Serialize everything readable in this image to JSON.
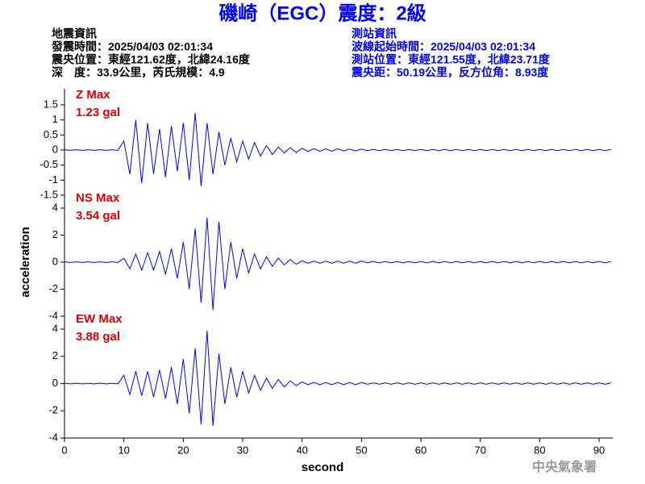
{
  "header": {
    "title": "磯崎（EGC）震度：2級",
    "left": [
      "地震資訊",
      "發震時間：2025/04/03 02:01:34",
      "震央位置：東經121.62度，北緯24.16度",
      "深　度：33.9公里，芮氏規模：4.9"
    ],
    "right": [
      "測站資訊",
      "波線起始時間：2025/04/03 02:01:34",
      "測站位置：東經121.55度，北緯23.71度",
      "震央距：50.19公里，反方位角：8.93度"
    ]
  },
  "footer": "中央氣象署",
  "chart_data": [
    {
      "type": "line",
      "annotation": [
        "Z Max",
        "1.23 gal"
      ],
      "xlim": [
        0,
        92.3
      ],
      "ylim": [
        -1.5,
        1.5
      ],
      "yticks": [
        -1.5,
        -1,
        -0.5,
        0,
        0.5,
        1,
        1.5
      ],
      "x": [
        0,
        1,
        2,
        3,
        4,
        5,
        6,
        7,
        8,
        9,
        10,
        11,
        12,
        13,
        14,
        15,
        16,
        17,
        18,
        19,
        20,
        21,
        22,
        23,
        24,
        25,
        26,
        27,
        28,
        29,
        30,
        31,
        32,
        33,
        34,
        35,
        36,
        37,
        38,
        39,
        40,
        41,
        42,
        43,
        44,
        45,
        46,
        47,
        48,
        49,
        50,
        51,
        52,
        53,
        54,
        55,
        56,
        57,
        58,
        59,
        60,
        61,
        62,
        63,
        64,
        65,
        66,
        67,
        68,
        69,
        70,
        71,
        72,
        73,
        74,
        75,
        76,
        77,
        78,
        79,
        80,
        81,
        82,
        83,
        84,
        85,
        86,
        87,
        88,
        89,
        90,
        91,
        92
      ],
      "series": [
        {
          "color": "#0000ff",
          "values": [
            0.01,
            -0.01,
            0.01,
            -0.01,
            0.01,
            -0.01,
            0.01,
            -0.01,
            0.01,
            -0.01,
            0.3,
            -0.8,
            1,
            -1.1,
            0.9,
            -0.8,
            0.7,
            -0.9,
            0.8,
            -0.7,
            0.9,
            -1,
            1.23,
            -1.2,
            0.9,
            -0.8,
            0.6,
            -0.5,
            0.4,
            -0.4,
            0.3,
            -0.3,
            0.25,
            -0.2,
            0.15,
            -0.15,
            0.1,
            -0.1,
            0.08,
            -0.08,
            0.06,
            -0.05,
            0.05,
            -0.04,
            0.04,
            -0.04,
            0.04,
            -0.03,
            0.03,
            -0.03,
            0.03,
            -0.02,
            0.02,
            -0.02,
            0.02,
            -0.02,
            0.02,
            -0.02,
            0.02,
            -0.02,
            0.02,
            -0.02,
            0.02,
            -0.02,
            0.02,
            -0.02,
            0.02,
            -0.02,
            0.02,
            -0.02,
            0.02,
            -0.02,
            0.02,
            -0.02,
            0.02,
            -0.02,
            0.02,
            -0.02,
            0.02,
            -0.02,
            0.02,
            -0.02,
            0.02,
            -0.02,
            0.02,
            -0.02,
            0.02,
            -0.02,
            0.02,
            -0.02,
            0.02,
            -0.02,
            0.02
          ]
        }
      ]
    },
    {
      "type": "line",
      "annotation": [
        "NS Max",
        "3.54 gal"
      ],
      "ylabel": "acceleration",
      "xlim": [
        0,
        92.3
      ],
      "ylim": [
        -4,
        4
      ],
      "yticks": [
        -4,
        -2,
        0,
        2,
        4
      ],
      "x": [
        0,
        1,
        2,
        3,
        4,
        5,
        6,
        7,
        8,
        9,
        10,
        11,
        12,
        13,
        14,
        15,
        16,
        17,
        18,
        19,
        20,
        21,
        22,
        23,
        24,
        25,
        26,
        27,
        28,
        29,
        30,
        31,
        32,
        33,
        34,
        35,
        36,
        37,
        38,
        39,
        40,
        41,
        42,
        43,
        44,
        45,
        46,
        47,
        48,
        49,
        50,
        51,
        52,
        53,
        54,
        55,
        56,
        57,
        58,
        59,
        60,
        61,
        62,
        63,
        64,
        65,
        66,
        67,
        68,
        69,
        70,
        71,
        72,
        73,
        74,
        75,
        76,
        77,
        78,
        79,
        80,
        81,
        82,
        83,
        84,
        85,
        86,
        87,
        88,
        89,
        90,
        91,
        92
      ],
      "series": [
        {
          "color": "#0000ff",
          "values": [
            0.02,
            -0.02,
            0.02,
            -0.02,
            0.02,
            -0.02,
            0.02,
            -0.02,
            0.02,
            -0.02,
            0.3,
            -0.5,
            0.6,
            -0.6,
            0.7,
            -0.6,
            0.8,
            -0.9,
            1,
            -1.2,
            1.5,
            -2,
            2.5,
            -3,
            3.3,
            -3.54,
            3,
            -2,
            1.5,
            -1.2,
            1,
            -0.8,
            0.6,
            -0.5,
            0.4,
            -0.3,
            0.3,
            -0.2,
            0.2,
            -0.15,
            0.1,
            -0.08,
            0.08,
            -0.08,
            0.08,
            -0.08,
            0.08,
            -0.08,
            0.08,
            -0.08,
            0.08,
            -0.05,
            0.05,
            -0.05,
            0.05,
            -0.05,
            0.05,
            -0.05,
            0.05,
            -0.05,
            0.05,
            -0.05,
            0.05,
            -0.05,
            0.05,
            -0.05,
            0.05,
            -0.05,
            0.05,
            -0.05,
            0.05,
            -0.05,
            0.05,
            -0.05,
            0.05,
            -0.05,
            0.05,
            -0.05,
            0.05,
            -0.05,
            0.05,
            -0.05,
            0.05,
            -0.05,
            0.05,
            -0.05,
            0.05,
            -0.05,
            0.05,
            -0.05,
            0.05,
            -0.05,
            0.05
          ]
        }
      ]
    },
    {
      "type": "line",
      "annotation": [
        "EW Max",
        "3.88 gal"
      ],
      "xlabel": "second",
      "xlim": [
        0,
        92.3
      ],
      "xticks": [
        0,
        10,
        20,
        30,
        40,
        50,
        60,
        70,
        80,
        90
      ],
      "ylim": [
        -4,
        4
      ],
      "yticks": [
        -4,
        -2,
        0,
        2,
        4
      ],
      "x": [
        0,
        1,
        2,
        3,
        4,
        5,
        6,
        7,
        8,
        9,
        10,
        11,
        12,
        13,
        14,
        15,
        16,
        17,
        18,
        19,
        20,
        21,
        22,
        23,
        24,
        25,
        26,
        27,
        28,
        29,
        30,
        31,
        32,
        33,
        34,
        35,
        36,
        37,
        38,
        39,
        40,
        41,
        42,
        43,
        44,
        45,
        46,
        47,
        48,
        49,
        50,
        51,
        52,
        53,
        54,
        55,
        56,
        57,
        58,
        59,
        60,
        61,
        62,
        63,
        64,
        65,
        66,
        67,
        68,
        69,
        70,
        71,
        72,
        73,
        74,
        75,
        76,
        77,
        78,
        79,
        80,
        81,
        82,
        83,
        84,
        85,
        86,
        87,
        88,
        89,
        90,
        91,
        92
      ],
      "series": [
        {
          "color": "#0000ff",
          "values": [
            0.02,
            -0.02,
            0.02,
            -0.02,
            0.02,
            -0.02,
            0.02,
            -0.02,
            0.02,
            -0.02,
            0.6,
            -0.8,
            0.9,
            -0.9,
            0.9,
            -1,
            1,
            -1.1,
            1.2,
            -1.5,
            1.8,
            -2.2,
            2.6,
            -3,
            3.88,
            -3.1,
            2.2,
            -1.5,
            1.2,
            -1,
            0.9,
            -0.7,
            0.6,
            -0.5,
            0.4,
            -0.35,
            0.3,
            -0.25,
            0.2,
            -0.15,
            0.12,
            -0.08,
            0.08,
            -0.08,
            0.08,
            -0.08,
            0.08,
            -0.08,
            0.08,
            -0.08,
            0.08,
            -0.05,
            0.05,
            -0.05,
            0.05,
            -0.05,
            0.05,
            -0.05,
            0.05,
            -0.05,
            0.05,
            -0.05,
            0.05,
            -0.05,
            0.05,
            -0.05,
            0.05,
            -0.05,
            0.05,
            -0.05,
            0.05,
            -0.05,
            0.05,
            -0.05,
            0.05,
            -0.05,
            0.05,
            -0.05,
            0.05,
            -0.05,
            0.05,
            -0.05,
            0.05,
            -0.05,
            0.05,
            -0.05,
            0.05,
            -0.05,
            0.05,
            -0.05,
            0.05,
            -0.05,
            0.05
          ]
        }
      ]
    }
  ]
}
